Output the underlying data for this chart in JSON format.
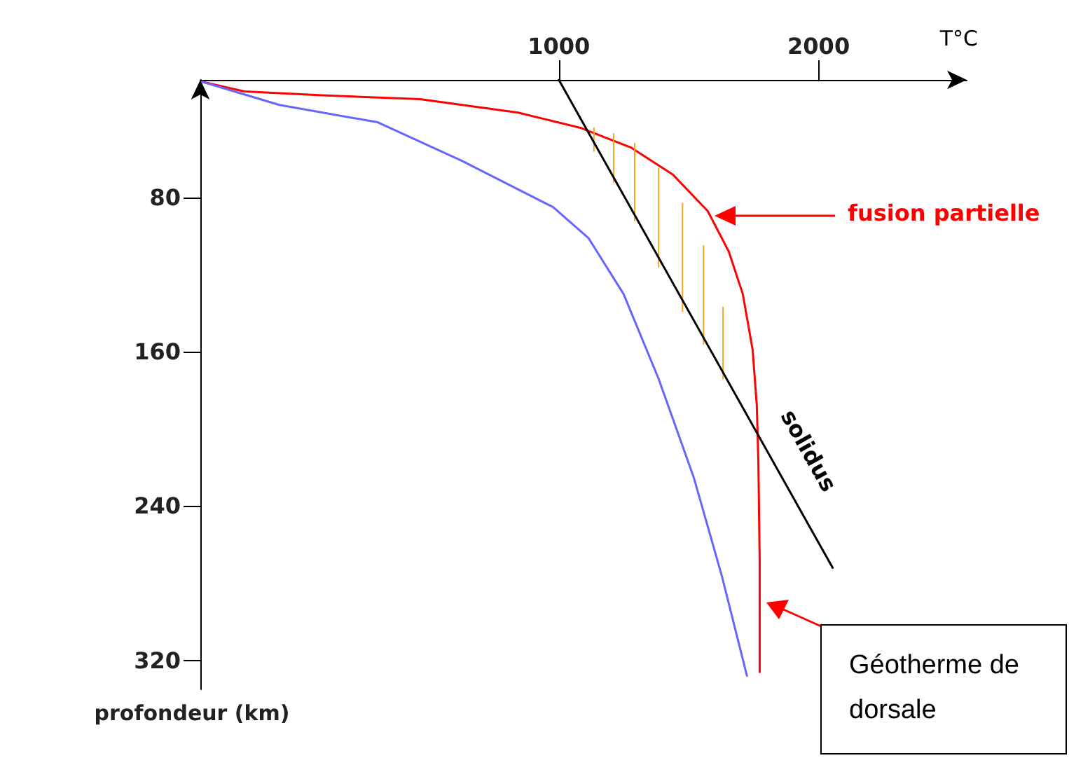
{
  "chart_data": {
    "type": "line",
    "xlabel": "T°C",
    "ylabel": "profondeur (km)",
    "xlim": [
      -380,
      2570
    ],
    "xticks": [
      1000,
      2000
    ],
    "ylim": [
      335,
      19
    ],
    "yticks": [
      80,
      160,
      240,
      320
    ],
    "grid": false,
    "legend": false,
    "marker": "none",
    "line_style": "solid",
    "series": [
      {
        "name": "solidus",
        "color": "#000000",
        "x": [
          1000,
          2054
        ],
        "values": [
          19,
          272
        ]
      },
      {
        "color": "#ff0000",
        "x": [
          -373,
          -211,
          87,
          465,
          843,
          1086,
          1276,
          1438,
          1573,
          1654,
          1708,
          1746,
          1762,
          1768,
          1773,
          1773
        ],
        "values": [
          20,
          25,
          27,
          29,
          36,
          44,
          54,
          68,
          87,
          108,
          130,
          159,
          188,
          217,
          268,
          326
        ]
      },
      {
        "color": "#6666ff",
        "x": [
          -373,
          -76,
          303,
          627,
          978,
          1114,
          1249,
          1384,
          1519,
          1627,
          1724
        ],
        "values": [
          20,
          32,
          41,
          61,
          85,
          101,
          130,
          174,
          225,
          276,
          328
        ]
      },
      {
        "color": "#f5a623",
        "x": [
          1135,
          1135,
          null,
          1211,
          1211,
          null,
          1292,
          1292,
          null,
          1384,
          1384,
          null,
          1476,
          1476,
          null,
          1557,
          1557,
          null,
          1632,
          1632
        ],
        "values": [
          44,
          56,
          null,
          47,
          72,
          null,
          52,
          92,
          null,
          65,
          116,
          null,
          83,
          139,
          null,
          105,
          156,
          null,
          137,
          174
        ]
      }
    ],
    "annotations": [
      "fusion partielle",
      "Géotherme de dorsale"
    ]
  }
}
